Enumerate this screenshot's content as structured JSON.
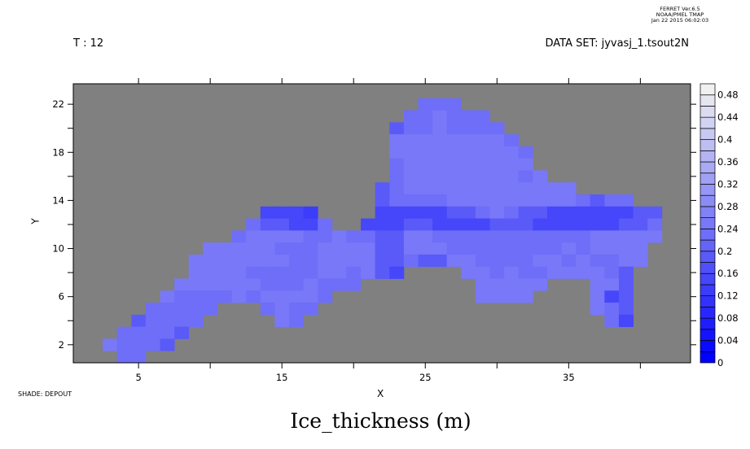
{
  "header": {
    "ferret_lines": [
      "FERRET  Ver.6.5",
      "NOAA/PMEL TMAP",
      "Jan 22 2015 06:02:03"
    ],
    "time_label": "T : 12",
    "dataset_label": "DATA SET: jyvasj_1.tsout2N",
    "shade_label": "SHADE: DEPOUT"
  },
  "chart_data": {
    "type": "heatmap",
    "title": "Ice_thickness (m)",
    "xlabel": "X",
    "ylabel": "Y",
    "xlim": [
      0.45,
      43.5
    ],
    "ylim": [
      0.5,
      23.7
    ],
    "x_ticks": [
      5,
      15,
      25,
      35
    ],
    "x_minor_ticks": [
      10,
      20,
      30,
      40
    ],
    "y_ticks": [
      2,
      6,
      10,
      14,
      18,
      22
    ],
    "y_minor_ticks": [
      4,
      8,
      12,
      16,
      20
    ],
    "background_color": "#808080",
    "colorbar": {
      "min": 0,
      "max": 0.5,
      "step": 0.02,
      "low_color": "#0000ff",
      "high_color": "#f0f0f0",
      "labels": [
        "0",
        "0.04",
        "0.08",
        "0.12",
        "0.16",
        "0.2",
        "0.24",
        "0.28",
        "0.32",
        "0.36",
        "0.4",
        "0.44",
        "0.48"
      ]
    },
    "rows": [
      {
        "y": 22,
        "x0": 25,
        "v": [
          0.23,
          0.23,
          0.23
        ]
      },
      {
        "y": 21,
        "x0": 24,
        "v": [
          0.23,
          0.23,
          0.25,
          0.23,
          0.23,
          0.23
        ]
      },
      {
        "y": 20,
        "x0": 23,
        "v": [
          0.19,
          0.23,
          0.23,
          0.25,
          0.23,
          0.23,
          0.23,
          0.23
        ]
      },
      {
        "y": 19,
        "x0": 23,
        "v": [
          0.25,
          0.25,
          0.25,
          0.25,
          0.25,
          0.25,
          0.25,
          0.25,
          0.23
        ]
      },
      {
        "y": 18,
        "x0": 23,
        "v": [
          0.25,
          0.25,
          0.25,
          0.25,
          0.25,
          0.25,
          0.25,
          0.25,
          0.25,
          0.23
        ]
      },
      {
        "y": 17,
        "x0": 23,
        "v": [
          0.23,
          0.25,
          0.25,
          0.25,
          0.25,
          0.25,
          0.25,
          0.25,
          0.25,
          0.25
        ]
      },
      {
        "y": 16,
        "x0": 23,
        "v": [
          0.23,
          0.25,
          0.25,
          0.25,
          0.25,
          0.25,
          0.25,
          0.25,
          0.25,
          0.23,
          0.25
        ]
      },
      {
        "y": 15,
        "x0": 22,
        "v": [
          0.19,
          0.23,
          0.25,
          0.25,
          0.25,
          0.25,
          0.25,
          0.25,
          0.25,
          0.25,
          0.25,
          0.25,
          0.25,
          0.25
        ]
      },
      {
        "y": 14,
        "x0": 22,
        "v": [
          0.19,
          0.23,
          0.23,
          0.23,
          0.23,
          0.25,
          0.25,
          0.25,
          0.25,
          0.25,
          0.25,
          0.25,
          0.25,
          0.25,
          0.23,
          0.19,
          0.23,
          0.23
        ]
      },
      {
        "y": 13,
        "x0": 14,
        "v": [
          0.15,
          0.15,
          0.15,
          0.13,
          null,
          null,
          null,
          null,
          0.15,
          0.15,
          0.15,
          0.15,
          0.15,
          0.19,
          0.19,
          0.23,
          0.25,
          0.23,
          0.19,
          0.19,
          0.15,
          0.15,
          0.15,
          0.15,
          0.15,
          0.15,
          0.19,
          0.19
        ]
      },
      {
        "y": 12,
        "x0": 13,
        "v": [
          0.23,
          0.19,
          0.19,
          0.15,
          0.15,
          0.23,
          null,
          null,
          0.15,
          0.15,
          0.15,
          0.19,
          0.19,
          0.15,
          0.15,
          0.15,
          0.15,
          0.19,
          0.19,
          0.19,
          0.15,
          0.15,
          0.15,
          0.15,
          0.15,
          0.15,
          0.19,
          0.19,
          0.23
        ]
      },
      {
        "y": 11,
        "x0": 12,
        "v": [
          0.23,
          0.25,
          0.25,
          0.25,
          0.25,
          0.23,
          0.23,
          0.25,
          0.23,
          0.23,
          0.19,
          0.19,
          0.25,
          0.25,
          0.23,
          0.23,
          0.23,
          0.23,
          0.23,
          0.23,
          0.23,
          0.23,
          0.23,
          0.23,
          0.23,
          0.25,
          0.25,
          0.25,
          0.25,
          0.25
        ]
      },
      {
        "y": 10,
        "x0": 10,
        "v": [
          0.25,
          0.25,
          0.25,
          0.25,
          0.25,
          0.23,
          0.23,
          0.23,
          0.25,
          0.25,
          0.25,
          0.25,
          0.19,
          0.19,
          0.25,
          0.25,
          0.25,
          0.23,
          0.23,
          0.23,
          0.23,
          0.23,
          0.23,
          0.23,
          0.23,
          0.25,
          0.23,
          0.25,
          0.25,
          0.25,
          0.25
        ]
      },
      {
        "y": 9,
        "x0": 9,
        "v": [
          0.25,
          0.25,
          0.25,
          0.25,
          0.25,
          0.25,
          0.25,
          0.23,
          0.23,
          0.25,
          0.25,
          0.25,
          0.25,
          0.19,
          0.19,
          0.23,
          0.19,
          0.19,
          0.25,
          0.25,
          0.23,
          0.23,
          0.23,
          0.23,
          0.25,
          0.25,
          0.23,
          0.25,
          0.23,
          0.23,
          0.25,
          0.25
        ]
      },
      {
        "y": 8,
        "x0": 9,
        "v": [
          0.25,
          0.25,
          0.25,
          0.25,
          0.23,
          0.23,
          0.23,
          0.23,
          0.23,
          0.25,
          0.25,
          0.23,
          0.25,
          0.19,
          0.15,
          null,
          null,
          null,
          null,
          0.25,
          0.25,
          0.23,
          0.25,
          0.23,
          0.23,
          0.25,
          0.25,
          0.25,
          0.25,
          0.23,
          0.19
        ]
      },
      {
        "y": 7,
        "x0": 8,
        "v": [
          0.25,
          0.25,
          0.25,
          0.25,
          0.25,
          0.25,
          0.23,
          0.23,
          0.23,
          0.25,
          0.23,
          0.23,
          0.23,
          null,
          null,
          null,
          null,
          null,
          null,
          null,
          null,
          0.25,
          0.25,
          0.25,
          0.25,
          0.25,
          null,
          null,
          null,
          0.25,
          0.25,
          0.19
        ]
      },
      {
        "y": 6,
        "x0": 7,
        "v": [
          0.25,
          0.23,
          0.23,
          0.23,
          0.23,
          0.25,
          0.23,
          0.25,
          0.25,
          0.25,
          0.25,
          0.23,
          null,
          null,
          null,
          null,
          null,
          null,
          null,
          null,
          null,
          null,
          0.25,
          0.25,
          0.25,
          0.25,
          null,
          null,
          null,
          null,
          0.25,
          0.15,
          0.19
        ]
      },
      {
        "y": 5,
        "x0": 6,
        "v": [
          0.23,
          0.23,
          0.23,
          0.23,
          0.23,
          null,
          null,
          null,
          0.23,
          0.25,
          0.23,
          0.23,
          null,
          null,
          null,
          null,
          null,
          null,
          null,
          null,
          null,
          null,
          null,
          null,
          null,
          null,
          null,
          null,
          null,
          null,
          null,
          0.25,
          0.23,
          0.19
        ]
      },
      {
        "y": 4,
        "x0": 5,
        "v": [
          0.19,
          0.23,
          0.23,
          0.23,
          0.23,
          null,
          null,
          null,
          null,
          null,
          0.25,
          0.23,
          null,
          null,
          null,
          null,
          null,
          null,
          null,
          null,
          null,
          null,
          null,
          null,
          null,
          null,
          null,
          null,
          null,
          null,
          null,
          null,
          null,
          0.23,
          0.15
        ]
      },
      {
        "y": 3,
        "x0": 4,
        "v": [
          0.23,
          0.23,
          0.23,
          0.23,
          0.19
        ]
      },
      {
        "y": 2,
        "x0": 3,
        "v": [
          0.25,
          0.23,
          0.23,
          0.23,
          0.19
        ]
      },
      {
        "y": 1,
        "x0": 4,
        "v": [
          0.23,
          0.23
        ]
      }
    ]
  }
}
